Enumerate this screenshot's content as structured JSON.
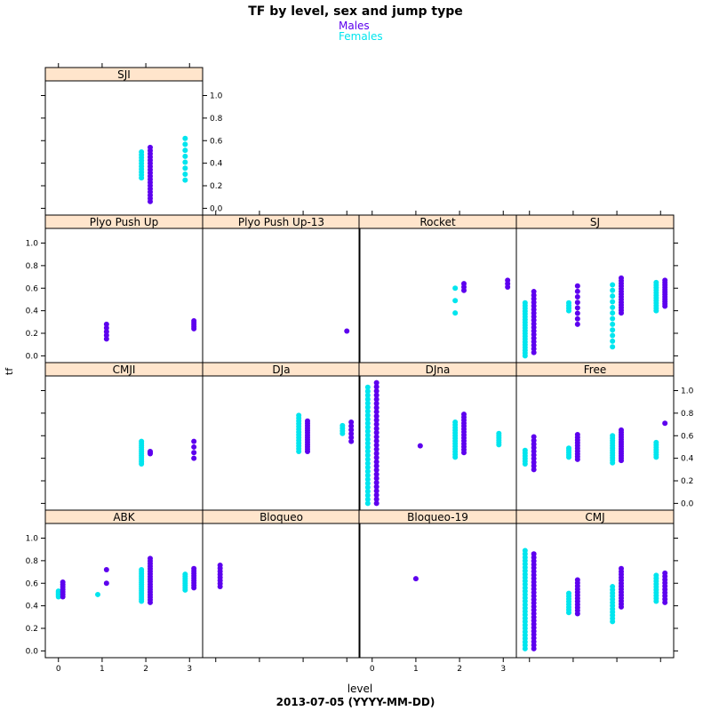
{
  "chart_data": {
    "type": "scatter",
    "title": "TF by level, sex and jump type",
    "xlabel": "level",
    "ylabel": "tf",
    "caption": "2013-07-05 (YYYY-MM-DD)",
    "legend": {
      "placement": "top-center",
      "entries": [
        {
          "name": "Males",
          "color": "#5D00EE"
        },
        {
          "name": "Females",
          "color": "#00E5EE"
        }
      ]
    },
    "x_ticks": [
      0,
      1,
      2,
      3
    ],
    "x_range": [
      -0.3,
      3.3
    ],
    "y_ticks": [
      0.0,
      0.2,
      0.4,
      0.6,
      0.8,
      1.0
    ],
    "y_tick_labels": [
      "0.0",
      "0.2",
      "0.4",
      "0.6",
      "0.8",
      "1.0"
    ],
    "y_range": [
      -0.06,
      1.13
    ],
    "colors": {
      "males": "#5D00EE",
      "females": "#00E5EE",
      "strip": "#FFE5CC"
    },
    "panels": [
      {
        "name": "ABK",
        "females": [
          [
            0,
            0.48,
            0.53,
            5
          ],
          [
            0.9,
            0.5,
            0.5,
            1
          ],
          [
            1.9,
            0.44,
            0.72,
            16
          ],
          [
            2.9,
            0.54,
            0.68,
            8
          ]
        ],
        "males": [
          [
            0.1,
            0.48,
            0.61,
            7
          ],
          [
            1.1,
            0.6,
            0.72,
            2
          ],
          [
            2.1,
            0.43,
            0.82,
            18
          ],
          [
            3.1,
            0.56,
            0.73,
            9
          ]
        ]
      },
      {
        "name": "Bloqueo",
        "females": [],
        "males": [
          [
            0.1,
            0.57,
            0.76,
            8
          ]
        ]
      },
      {
        "name": "Bloqueo-19",
        "females": [],
        "males": [
          [
            1.0,
            0.64,
            0.64,
            1
          ]
        ]
      },
      {
        "name": "CMJ",
        "females": [
          [
            -0.1,
            0.02,
            0.89,
            30
          ],
          [
            0.9,
            0.34,
            0.51,
            8
          ],
          [
            1.9,
            0.26,
            0.57,
            12
          ],
          [
            2.9,
            0.44,
            0.67,
            10
          ]
        ],
        "males": [
          [
            0.1,
            0.02,
            0.86,
            28
          ],
          [
            1.1,
            0.33,
            0.63,
            12
          ],
          [
            2.1,
            0.39,
            0.73,
            14
          ],
          [
            3.1,
            0.43,
            0.69,
            10
          ]
        ]
      },
      {
        "name": "CMJI",
        "females": [
          [
            1.9,
            0.35,
            0.55,
            12
          ]
        ],
        "males": [
          [
            2.1,
            0.44,
            0.46,
            3
          ],
          [
            3.1,
            0.4,
            0.55,
            4
          ]
        ]
      },
      {
        "name": "DJa",
        "females": [
          [
            1.9,
            0.46,
            0.78,
            14
          ],
          [
            2.9,
            0.62,
            0.69,
            4
          ]
        ],
        "males": [
          [
            2.1,
            0.46,
            0.73,
            14
          ],
          [
            3.1,
            0.55,
            0.72,
            6
          ]
        ]
      },
      {
        "name": "DJna",
        "females": [
          [
            -0.1,
            0.0,
            1.03,
            30
          ],
          [
            1.9,
            0.41,
            0.72,
            14
          ],
          [
            2.9,
            0.52,
            0.62,
            6
          ]
        ],
        "males": [
          [
            0.1,
            0.0,
            1.07,
            30
          ],
          [
            1.1,
            0.51,
            0.51,
            1
          ],
          [
            2.1,
            0.45,
            0.79,
            14
          ]
        ]
      },
      {
        "name": "Free",
        "females": [
          [
            -0.1,
            0.35,
            0.47,
            6
          ],
          [
            0.9,
            0.41,
            0.49,
            5
          ],
          [
            1.9,
            0.36,
            0.6,
            12
          ],
          [
            2.9,
            0.41,
            0.54,
            7
          ]
        ],
        "males": [
          [
            0.1,
            0.3,
            0.59,
            10
          ],
          [
            1.1,
            0.39,
            0.61,
            10
          ],
          [
            2.1,
            0.38,
            0.65,
            14
          ],
          [
            3.1,
            0.71,
            0.71,
            1
          ]
        ]
      },
      {
        "name": "Plyo Push Up",
        "females": [],
        "males": [
          [
            1.1,
            0.15,
            0.28,
            5
          ],
          [
            3.1,
            0.24,
            0.31,
            5
          ]
        ]
      },
      {
        "name": "Plyo Push Up-13",
        "females": [],
        "males": [
          [
            3.0,
            0.22,
            0.22,
            1
          ]
        ]
      },
      {
        "name": "Rocket",
        "females": [
          [
            1.9,
            0.38,
            0.6,
            3
          ]
        ],
        "males": [
          [
            2.1,
            0.58,
            0.64,
            3
          ],
          [
            3.1,
            0.61,
            0.67,
            3
          ]
        ]
      },
      {
        "name": "SJ",
        "females": [
          [
            -0.1,
            0.0,
            0.47,
            20
          ],
          [
            0.9,
            0.4,
            0.47,
            4
          ],
          [
            1.9,
            0.08,
            0.63,
            12
          ],
          [
            2.9,
            0.4,
            0.65,
            12
          ]
        ],
        "males": [
          [
            0.1,
            0.03,
            0.57,
            18
          ],
          [
            1.1,
            0.28,
            0.62,
            8
          ],
          [
            2.1,
            0.38,
            0.69,
            14
          ],
          [
            3.1,
            0.44,
            0.67,
            12
          ]
        ]
      },
      {
        "name": "SJI",
        "females": [
          [
            1.9,
            0.27,
            0.5,
            10
          ],
          [
            2.9,
            0.25,
            0.62,
            8
          ]
        ],
        "males": [
          [
            2.1,
            0.06,
            0.54,
            18
          ]
        ]
      }
    ]
  }
}
